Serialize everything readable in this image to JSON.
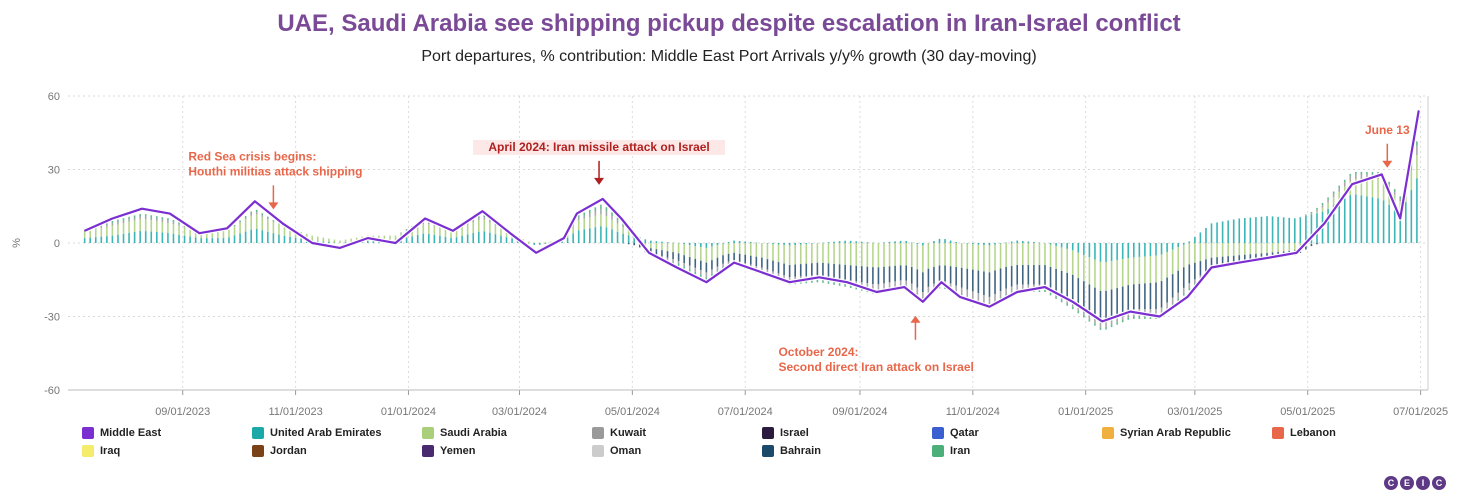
{
  "title": "UAE, Saudi Arabia see shipping pickup despite escalation in Iran-Israel conflict",
  "subtitle": "Port departures, % contribution: Middle East Port Arrivals y/y% growth (30 day-moving)",
  "logo_letters": [
    "C",
    "E",
    "I",
    "C"
  ],
  "chart_data": {
    "type": "bar",
    "ylabel": "%",
    "ylim": [
      -60,
      60
    ],
    "y_ticks": [
      "60",
      "30",
      "0",
      "-30",
      "-60"
    ],
    "x_ticks": [
      "09/01/2023",
      "11/01/2023",
      "01/01/2024",
      "03/01/2024",
      "05/01/2024",
      "07/01/2024",
      "09/01/2024",
      "11/01/2024",
      "01/01/2025",
      "03/01/2025",
      "05/01/2025",
      "07/01/2025"
    ],
    "grid": true,
    "line_series": {
      "name": "Middle East",
      "color": "#7b2fd0",
      "dates": [
        "2023-07-10",
        "2023-07-25",
        "2023-08-10",
        "2023-08-25",
        "2023-09-10",
        "2023-09-25",
        "2023-10-10",
        "2023-10-25",
        "2023-11-10",
        "2023-11-25",
        "2023-12-10",
        "2023-12-25",
        "2024-01-10",
        "2024-01-25",
        "2024-02-10",
        "2024-02-25",
        "2024-03-10",
        "2024-03-25",
        "2024-04-01",
        "2024-04-15",
        "2024-04-25",
        "2024-05-10",
        "2024-05-25",
        "2024-06-10",
        "2024-06-25",
        "2024-07-10",
        "2024-07-25",
        "2024-08-10",
        "2024-08-25",
        "2024-09-10",
        "2024-09-25",
        "2024-10-05",
        "2024-10-15",
        "2024-10-25",
        "2024-11-10",
        "2024-11-25",
        "2024-12-10",
        "2024-12-25",
        "2025-01-10",
        "2025-01-25",
        "2025-02-10",
        "2025-02-25",
        "2025-03-10",
        "2025-03-25",
        "2025-04-10",
        "2025-04-25",
        "2025-05-10",
        "2025-05-25",
        "2025-06-10",
        "2025-06-20",
        "2025-06-30"
      ],
      "values": [
        5,
        10,
        14,
        12,
        4,
        6,
        17,
        8,
        0,
        -2,
        2,
        0,
        10,
        5,
        13,
        4,
        -4,
        2,
        12,
        18,
        10,
        -4,
        -10,
        -16,
        -8,
        -12,
        -16,
        -14,
        -16,
        -20,
        -18,
        -24,
        -16,
        -22,
        -26,
        -20,
        -18,
        -24,
        -32,
        -28,
        -30,
        -22,
        -10,
        -8,
        -6,
        -4,
        8,
        24,
        28,
        10,
        54
      ]
    },
    "stack_series": [
      {
        "name": "United Arab Emirates",
        "color": "#1aa8a8",
        "values": [
          2,
          3,
          5,
          4,
          2,
          2,
          6,
          3,
          1,
          0,
          1,
          1,
          4,
          2,
          5,
          2,
          -1,
          1,
          5,
          7,
          4,
          1,
          0,
          -2,
          1,
          0,
          -1,
          0,
          1,
          0,
          1,
          -1,
          2,
          0,
          -1,
          1,
          0,
          -3,
          -8,
          -6,
          -5,
          0,
          8,
          10,
          11,
          10,
          13,
          20,
          18,
          12,
          28
        ]
      },
      {
        "name": "Saudi Arabia",
        "color": "#a9cf7a",
        "values": [
          3,
          4,
          5,
          4,
          3,
          3,
          6,
          4,
          2,
          1,
          2,
          2,
          4,
          3,
          5,
          2,
          0,
          1,
          4,
          5,
          3,
          -2,
          -4,
          -6,
          -4,
          -6,
          -8,
          -8,
          -9,
          -10,
          -9,
          -11,
          -9,
          -10,
          -11,
          -9,
          -9,
          -10,
          -12,
          -11,
          -11,
          -9,
          -6,
          -5,
          -4,
          -3,
          2,
          6,
          8,
          5,
          10
        ]
      },
      {
        "name": "Bahrain",
        "color": "#1d4a6b",
        "values": [
          0,
          0,
          0,
          0,
          0,
          0,
          0,
          0,
          0,
          0,
          0,
          0,
          0,
          0,
          0,
          0,
          0,
          0,
          0,
          0,
          0,
          -2,
          -3,
          -4,
          -3,
          -4,
          -5,
          -5,
          -6,
          -7,
          -6,
          -8,
          -6,
          -8,
          -10,
          -8,
          -8,
          -10,
          -12,
          -10,
          -11,
          -8,
          -4,
          -3,
          -2,
          -2,
          0,
          0,
          0,
          0,
          0
        ]
      },
      {
        "name": "Kuwait",
        "color": "#9a9a9a",
        "values": [
          0,
          1,
          1,
          1,
          0,
          0,
          1,
          0,
          0,
          0,
          0,
          0,
          1,
          0,
          1,
          0,
          0,
          0,
          1,
          2,
          1,
          -1,
          -1,
          -2,
          -1,
          -2,
          -2,
          -2,
          -2,
          -3,
          -2,
          -3,
          -2,
          -3,
          -3,
          -2,
          -2,
          -3,
          -3,
          -3,
          -3,
          -2,
          -1,
          -1,
          0,
          0,
          1,
          2,
          2,
          1,
          4
        ]
      },
      {
        "name": "Iran",
        "color": "#4caf7a",
        "values": [
          0,
          1,
          1,
          1,
          0,
          0,
          1,
          0,
          0,
          0,
          0,
          0,
          1,
          0,
          1,
          0,
          0,
          0,
          1,
          2,
          1,
          0,
          -1,
          -1,
          -1,
          -1,
          -1,
          -1,
          -1,
          -1,
          -1,
          -1,
          -1,
          -1,
          -1,
          -1,
          -1,
          -1,
          -1,
          -1,
          -1,
          -1,
          0,
          0,
          0,
          0,
          1,
          1,
          1,
          1,
          2
        ]
      }
    ],
    "legend": [
      {
        "name": "Middle East",
        "color": "#7b2fd0"
      },
      {
        "name": "United Arab Emirates",
        "color": "#1aa8a8"
      },
      {
        "name": "Saudi Arabia",
        "color": "#a9cf7a"
      },
      {
        "name": "Kuwait",
        "color": "#9a9a9a"
      },
      {
        "name": "Israel",
        "color": "#2b1a3d"
      },
      {
        "name": "Qatar",
        "color": "#3a5fd1"
      },
      {
        "name": "Syrian Arab Republic",
        "color": "#f0b040"
      },
      {
        "name": "Lebanon",
        "color": "#e8674a"
      },
      {
        "name": "Iraq",
        "color": "#f4ec6a"
      },
      {
        "name": "Jordan",
        "color": "#7a4216"
      },
      {
        "name": "Yemen",
        "color": "#4a2a6e"
      },
      {
        "name": "Oman",
        "color": "#cccccc"
      },
      {
        "name": "Bahrain",
        "color": "#1d4a6b"
      },
      {
        "name": "Iran",
        "color": "#4caf7a"
      }
    ],
    "annotations": [
      {
        "lines": [
          "Red Sea crisis begins:",
          "Houthi militias attack shipping"
        ],
        "date": "2023-10-20",
        "value": 8,
        "direction": "down",
        "color": "#e8674a"
      },
      {
        "lines": [
          "April 2024: Iran missile attack on Israel"
        ],
        "date": "2024-04-13",
        "value": 18,
        "direction": "down",
        "color": "#b02020",
        "highlight": true
      },
      {
        "lines": [
          "October 2024:",
          "Second direct Iran attack on Israel"
        ],
        "date": "2024-10-01",
        "value": -24,
        "direction": "up",
        "color": "#e8674a"
      },
      {
        "lines": [
          "June 13"
        ],
        "date": "2025-06-13",
        "value": 25,
        "direction": "down",
        "color": "#e8674a"
      }
    ]
  }
}
